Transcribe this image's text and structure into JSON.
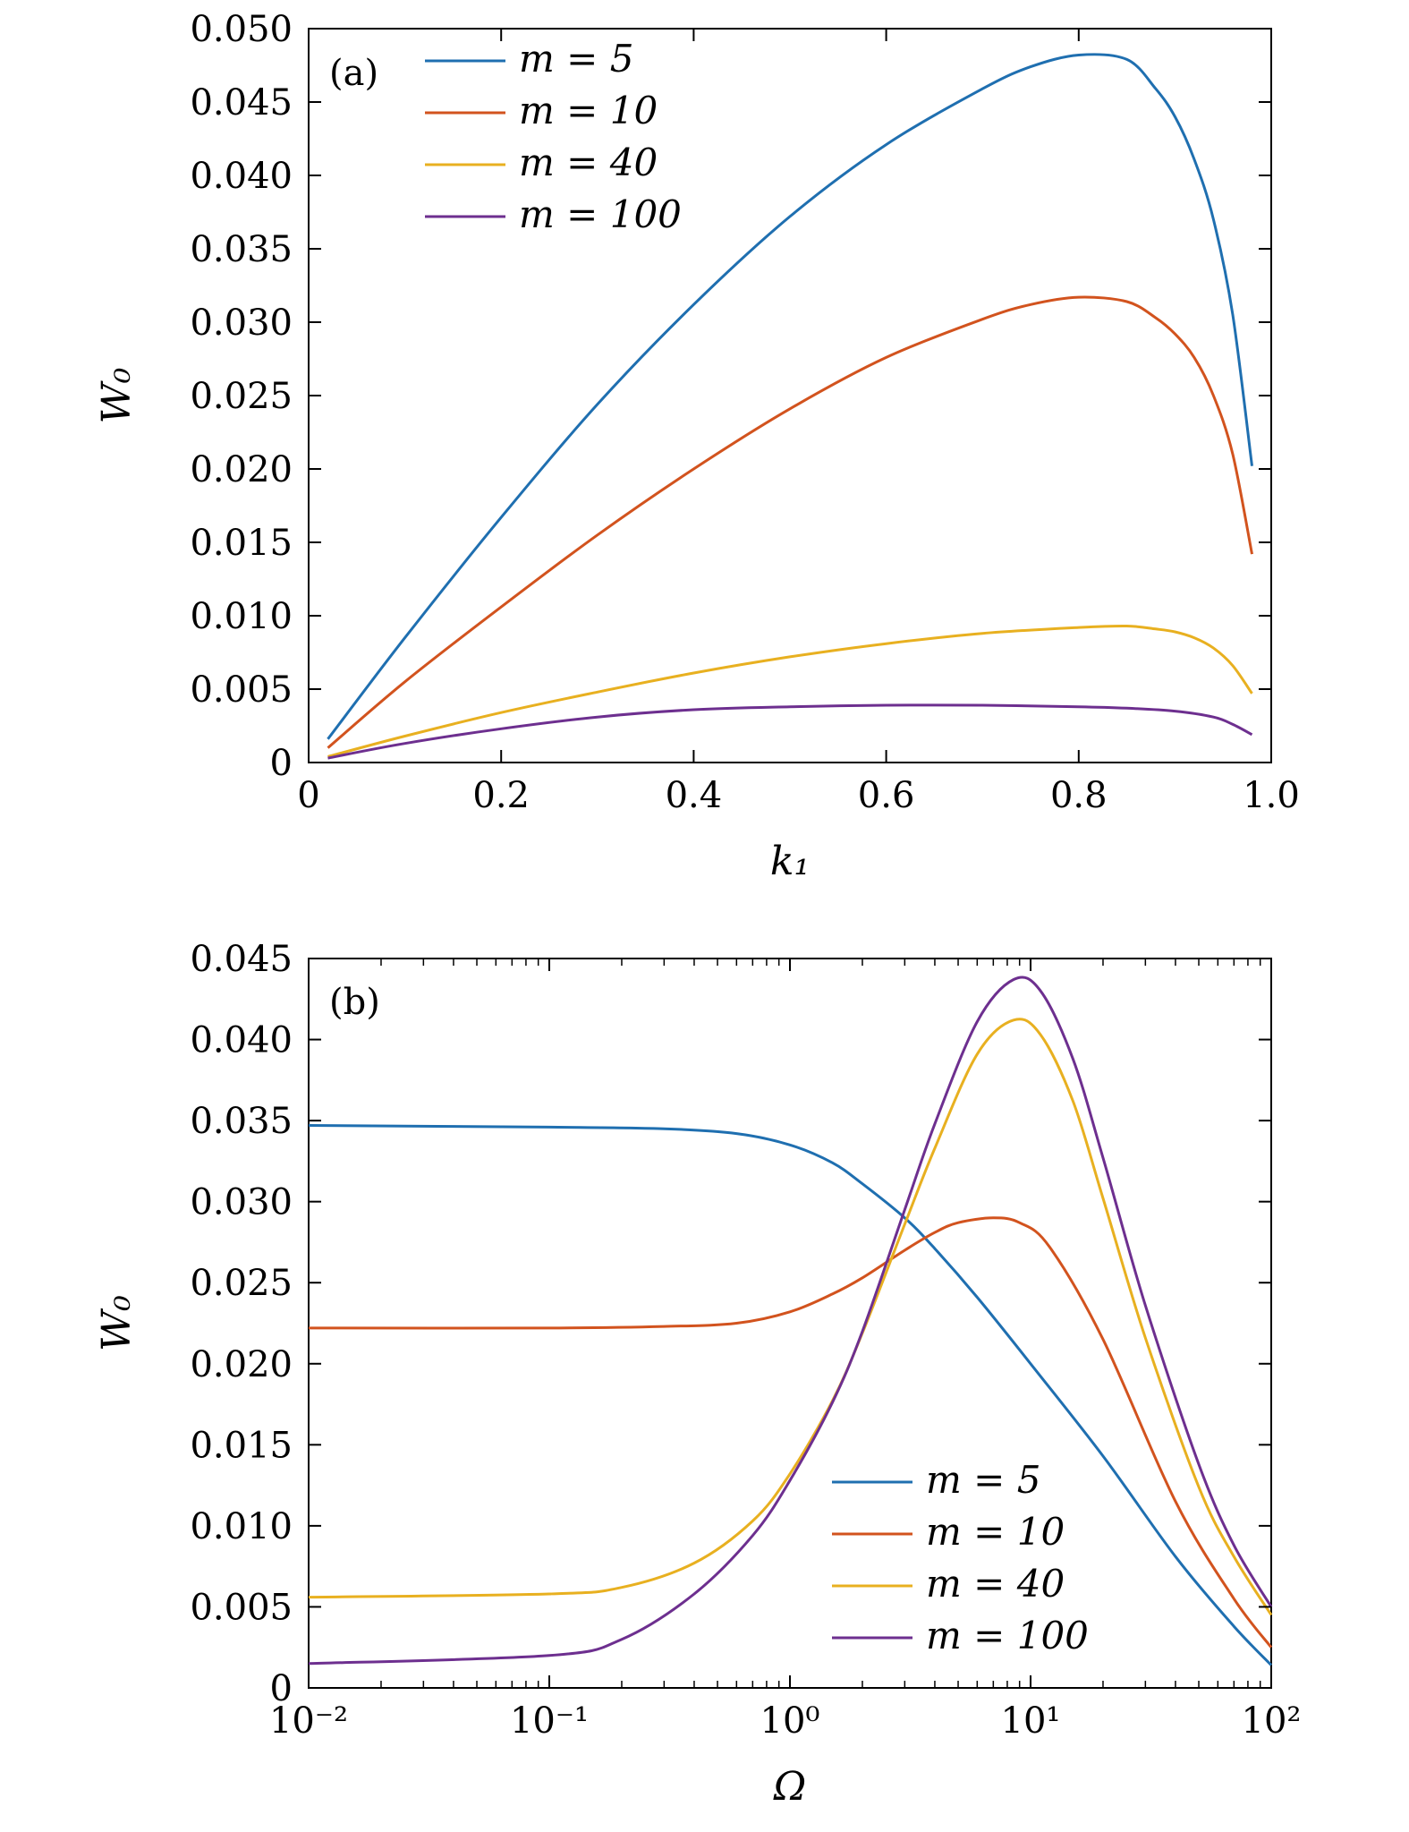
{
  "chart_data": [
    {
      "type": "line",
      "panel_label": "(a)",
      "xlabel": "k₁",
      "ylabel": "W₀",
      "xlim": [
        0,
        1.0
      ],
      "ylim": [
        0,
        0.05
      ],
      "xscale": "linear",
      "grid": false,
      "legend_position": "top-left",
      "x_tick_labels": [
        "0",
        "0.2",
        "0.4",
        "0.6",
        "0.8",
        "1.0"
      ],
      "y_tick_labels": [
        "0",
        "0.005",
        "0.010",
        "0.015",
        "0.020",
        "0.025",
        "0.030",
        "0.035",
        "0.040",
        "0.045",
        "0.050"
      ],
      "series": [
        {
          "name": "m = 5",
          "color": "#1f6fb0",
          "x": [
            0.02,
            0.1,
            0.2,
            0.3,
            0.4,
            0.5,
            0.6,
            0.7,
            0.75,
            0.8,
            0.85,
            0.88,
            0.9,
            0.92,
            0.94,
            0.96,
            0.98
          ],
          "y": [
            0.0016,
            0.0085,
            0.0167,
            0.0244,
            0.0312,
            0.0372,
            0.0421,
            0.0459,
            0.0474,
            0.0482,
            0.0479,
            0.0459,
            0.044,
            0.0411,
            0.037,
            0.0305,
            0.0202
          ]
        },
        {
          "name": "m = 10",
          "color": "#d2531e",
          "x": [
            0.02,
            0.1,
            0.2,
            0.3,
            0.4,
            0.5,
            0.6,
            0.7,
            0.75,
            0.8,
            0.85,
            0.88,
            0.9,
            0.92,
            0.94,
            0.96,
            0.98
          ],
          "y": [
            0.001,
            0.0055,
            0.0106,
            0.0155,
            0.02,
            0.0241,
            0.0276,
            0.0302,
            0.0312,
            0.0317,
            0.0314,
            0.0303,
            0.0292,
            0.0276,
            0.025,
            0.021,
            0.0142
          ]
        },
        {
          "name": "m = 40",
          "color": "#e8b020",
          "x": [
            0.02,
            0.1,
            0.2,
            0.3,
            0.4,
            0.5,
            0.6,
            0.7,
            0.8,
            0.85,
            0.88,
            0.9,
            0.92,
            0.94,
            0.96,
            0.98
          ],
          "y": [
            0.0004,
            0.0018,
            0.0034,
            0.0048,
            0.0061,
            0.0072,
            0.0081,
            0.0088,
            0.0092,
            0.0093,
            0.0091,
            0.0089,
            0.0085,
            0.0078,
            0.0066,
            0.0047
          ]
        },
        {
          "name": "m = 100",
          "color": "#6d2f8f",
          "x": [
            0.02,
            0.1,
            0.2,
            0.3,
            0.4,
            0.5,
            0.6,
            0.7,
            0.8,
            0.85,
            0.9,
            0.94,
            0.96,
            0.98
          ],
          "y": [
            0.0003,
            0.0013,
            0.0023,
            0.0031,
            0.0036,
            0.0038,
            0.0039,
            0.0039,
            0.0038,
            0.0037,
            0.0035,
            0.0031,
            0.0026,
            0.0019
          ]
        }
      ]
    },
    {
      "type": "line",
      "panel_label": "(b)",
      "xlabel": "Ω",
      "ylabel": "W₀",
      "xlim": [
        0.01,
        100
      ],
      "ylim": [
        0,
        0.045
      ],
      "xscale": "log",
      "grid": false,
      "legend_position": "bottom-right",
      "x_tick_labels": [
        "10⁻²",
        "10⁻¹",
        "10⁰",
        "10¹",
        "10²"
      ],
      "y_tick_labels": [
        "0",
        "0.005",
        "0.010",
        "0.015",
        "0.020",
        "0.025",
        "0.030",
        "0.035",
        "0.040",
        "0.045"
      ],
      "series": [
        {
          "name": "m = 5",
          "color": "#1f6fb0",
          "x": [
            0.01,
            0.1,
            0.3,
            0.6,
            1.0,
            1.5,
            2.0,
            3.0,
            4.0,
            6.0,
            10,
            20,
            40,
            70,
            100
          ],
          "y": [
            0.0347,
            0.0346,
            0.0345,
            0.0342,
            0.0335,
            0.0324,
            0.0311,
            0.029,
            0.0271,
            0.0241,
            0.02,
            0.0143,
            0.0081,
            0.0038,
            0.0014
          ]
        },
        {
          "name": "m = 10",
          "color": "#d2531e",
          "x": [
            0.01,
            0.1,
            0.3,
            0.6,
            1.0,
            1.5,
            2.0,
            3.0,
            4.0,
            5.0,
            7.0,
            9.0,
            12,
            20,
            40,
            70,
            100
          ],
          "y": [
            0.0222,
            0.0222,
            0.0223,
            0.0225,
            0.0232,
            0.0243,
            0.0253,
            0.027,
            0.0281,
            0.0287,
            0.029,
            0.0287,
            0.0272,
            0.0215,
            0.0115,
            0.0055,
            0.0025
          ]
        },
        {
          "name": "m = 40",
          "color": "#e8b020",
          "x": [
            0.01,
            0.1,
            0.2,
            0.4,
            0.7,
            1.0,
            1.5,
            2.0,
            3.0,
            4.0,
            6.0,
            8.5,
            11,
            15,
            20,
            30,
            50,
            70,
            100
          ],
          "y": [
            0.0056,
            0.0058,
            0.0062,
            0.0077,
            0.0103,
            0.0132,
            0.0177,
            0.0219,
            0.0286,
            0.0333,
            0.0391,
            0.0412,
            0.0403,
            0.0362,
            0.0302,
            0.0216,
            0.0124,
            0.0081,
            0.0045
          ]
        },
        {
          "name": "m = 100",
          "color": "#6d2f8f",
          "x": [
            0.01,
            0.1,
            0.2,
            0.4,
            0.7,
            1.0,
            1.5,
            2.0,
            3.0,
            4.0,
            6.0,
            8.5,
            11,
            15,
            20,
            30,
            50,
            70,
            100
          ],
          "y": [
            0.0015,
            0.002,
            0.003,
            0.0058,
            0.0094,
            0.0128,
            0.0176,
            0.022,
            0.0295,
            0.0348,
            0.0411,
            0.0437,
            0.043,
            0.0388,
            0.0327,
            0.0236,
            0.0138,
            0.0088,
            0.005
          ]
        }
      ]
    }
  ]
}
